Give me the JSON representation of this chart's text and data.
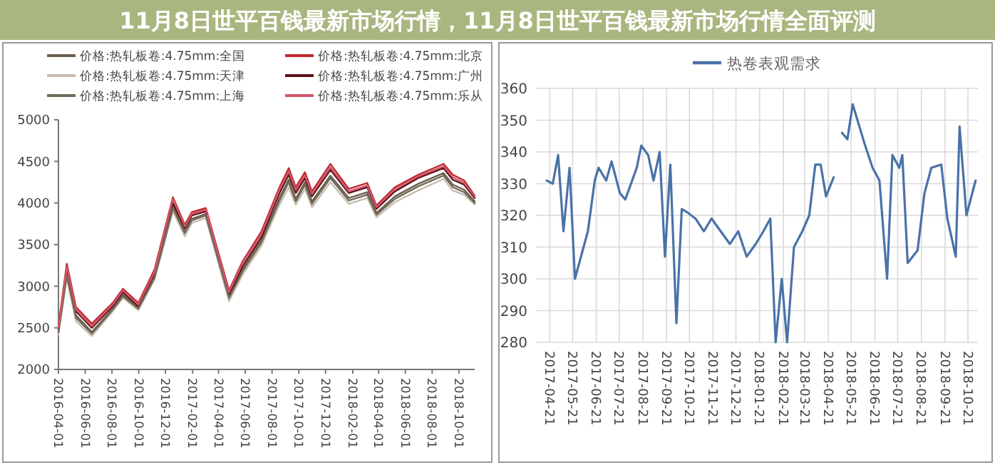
{
  "chart_data": [
    {
      "type": "line",
      "x": [
        "2016-04-01",
        "2016-04-20",
        "2016-05-11",
        "2016-06-16",
        "2016-08-03",
        "2016-08-26",
        "2016-09-30",
        "2016-11-06",
        "2016-12-18",
        "2017-01-14",
        "2017-01-30",
        "2017-03-03",
        "2017-04-25",
        "2017-05-26",
        "2017-07-07",
        "2017-08-18",
        "2017-09-08",
        "2017-09-24",
        "2017-10-15",
        "2017-10-31",
        "2017-12-12",
        "2018-01-23",
        "2018-03-06",
        "2018-03-27",
        "2018-05-08",
        "2018-06-30",
        "2018-08-27",
        "2018-09-17",
        "2018-10-13",
        "2018-11-06"
      ],
      "series": [
        {
          "name": "价格:热轧板卷:4.75mm:全国",
          "color": "#6b5e4e",
          "values": [
            2460,
            3150,
            2650,
            2450,
            2730,
            2900,
            2740,
            3120,
            3960,
            3660,
            3810,
            3870,
            2880,
            3200,
            3540,
            4060,
            4280,
            4050,
            4250,
            4020,
            4330,
            4060,
            4130,
            3880,
            4080,
            4230,
            4360,
            4220,
            4160,
            4020
          ]
        },
        {
          "name": "价格:热轧板卷:4.75mm:北京",
          "color": "#c0282d",
          "values": [
            2520,
            3270,
            2750,
            2550,
            2800,
            2970,
            2800,
            3200,
            4070,
            3740,
            3890,
            3940,
            2950,
            3300,
            3650,
            4190,
            4420,
            4190,
            4370,
            4140,
            4470,
            4170,
            4240,
            3970,
            4190,
            4340,
            4470,
            4340,
            4270,
            4090
          ]
        },
        {
          "name": "价格:热轧板卷:4.75mm:天津",
          "color": "#c9bcae",
          "values": [
            2420,
            3100,
            2580,
            2400,
            2700,
            2860,
            2710,
            3080,
            3900,
            3600,
            3760,
            3820,
            2820,
            3140,
            3480,
            3980,
            4190,
            3980,
            4170,
            3950,
            4250,
            3990,
            4060,
            3830,
            4010,
            4150,
            4290,
            4150,
            4100,
            3980
          ]
        },
        {
          "name": "价格:热轧板卷:4.75mm:广州",
          "color": "#5c1018",
          "values": [
            2480,
            3200,
            2700,
            2500,
            2760,
            2930,
            2760,
            3150,
            4000,
            3700,
            3850,
            3900,
            2900,
            3240,
            3580,
            4120,
            4340,
            4120,
            4300,
            4080,
            4400,
            4120,
            4190,
            3930,
            4140,
            4300,
            4420,
            4280,
            4220,
            4060
          ]
        },
        {
          "name": "价格:热轧板卷:4.75mm:上海",
          "color": "#6f6a58",
          "values": [
            2440,
            3130,
            2620,
            2430,
            2720,
            2880,
            2730,
            3100,
            3940,
            3640,
            3790,
            3850,
            2860,
            3180,
            3520,
            4030,
            4250,
            4020,
            4220,
            3990,
            4300,
            4030,
            4100,
            3860,
            4050,
            4200,
            4330,
            4190,
            4130,
            4000
          ]
        },
        {
          "name": "价格:热轧板卷:4.75mm:乐从",
          "color": "#d2566a",
          "values": [
            2500,
            3230,
            2720,
            2520,
            2780,
            2950,
            2780,
            3170,
            4050,
            3720,
            3870,
            3920,
            2930,
            3280,
            3620,
            4160,
            4380,
            4160,
            4330,
            4110,
            4430,
            4140,
            4210,
            3950,
            4170,
            4320,
            4440,
            4310,
            4240,
            4080
          ]
        }
      ],
      "xlim": [
        "2016-04-01",
        "2018-11-06"
      ],
      "ylim": [
        2000,
        5000
      ],
      "yticks": [
        2000,
        2500,
        3000,
        3500,
        4000,
        4500,
        5000
      ],
      "xticks": [
        "2016-04-01",
        "2016-06-01",
        "2016-08-01",
        "2016-10-01",
        "2016-12-01",
        "2017-02-01",
        "2017-04-01",
        "2017-06-01",
        "2017-08-01",
        "2017-10-01",
        "2017-12-01",
        "2018-02-01",
        "2018-04-01",
        "2018-06-01",
        "2018-08-01",
        "2018-10-01"
      ],
      "legend": "top",
      "grid": false
    },
    {
      "type": "line",
      "x": [
        "2017-04-17",
        "2017-04-25",
        "2017-05-02",
        "2017-05-09",
        "2017-05-17",
        "2017-05-24",
        "2017-06-10",
        "2017-06-19",
        "2017-06-24",
        "2017-07-04",
        "2017-07-11",
        "2017-07-22",
        "2017-07-29",
        "2017-08-13",
        "2017-08-19",
        "2017-08-28",
        "2017-09-04",
        "2017-09-12",
        "2017-09-19",
        "2017-09-26",
        "2017-10-04",
        "2017-10-11",
        "2017-10-18",
        "2017-10-29",
        "2017-11-09",
        "2017-11-19",
        "2017-12-01",
        "2017-12-13",
        "2017-12-24",
        "2018-01-04",
        "2018-01-16",
        "2018-01-26",
        "2018-02-04",
        "2018-02-11",
        "2018-02-19",
        "2018-02-26",
        "2018-03-07",
        "2018-03-18",
        "2018-03-27",
        "2018-04-04",
        "2018-04-11",
        "2018-04-18",
        "2018-04-28"
      ],
      "series": [
        {
          "name": "热卷表观需求",
          "color": "#4a72a8",
          "values": [
            331,
            330,
            339,
            315,
            335,
            300,
            315,
            331,
            335,
            331,
            337,
            327,
            325,
            335,
            342,
            339,
            331,
            340,
            307,
            336,
            286,
            322,
            321,
            319,
            315,
            319,
            315,
            311,
            315,
            307,
            311,
            315,
            319,
            280,
            300,
            280,
            310,
            315,
            320,
            336,
            336,
            326,
            332
          ]
        },
        {
          "color": "#4a72a8",
          "x": [
            "2018-05-09",
            "2018-05-16",
            "2018-05-23",
            "2018-06-07",
            "2018-06-18",
            "2018-06-27",
            "2018-07-07",
            "2018-07-14",
            "2018-07-23",
            "2018-07-27",
            "2018-08-03",
            "2018-08-16",
            "2018-08-25",
            "2018-09-03",
            "2018-09-16",
            "2018-09-24",
            "2018-10-05",
            "2018-10-10",
            "2018-10-19",
            "2018-10-31"
          ],
          "values": [
            346,
            344,
            355,
            343,
            335,
            331,
            300,
            339,
            335,
            339,
            305,
            309,
            327,
            335,
            336,
            319,
            307,
            348,
            320,
            331
          ]
        }
      ],
      "xlim": [
        "2017-04-03",
        "2018-11-03"
      ],
      "ylim": [
        280,
        360
      ],
      "yticks": [
        280,
        290,
        300,
        310,
        320,
        330,
        340,
        350,
        360
      ],
      "xticks": [
        "2017-04-21",
        "2017-05-21",
        "2017-06-21",
        "2017-07-21",
        "2017-08-21",
        "2017-09-21",
        "2017-10-21",
        "2017-11-21",
        "2017-12-21",
        "2018-01-21",
        "2018-02-21",
        "2018-03-21",
        "2018-04-21",
        "2018-05-21",
        "2018-06-21",
        "2018-07-21",
        "2018-08-21",
        "2018-09-21",
        "2018-10-21"
      ],
      "legend": "top",
      "grid": true
    },
    {
      "type": "other",
      "title": "11月8日世平百钱最新市场行情，11月8日世平百钱最新市场行情全面评测"
    }
  ]
}
